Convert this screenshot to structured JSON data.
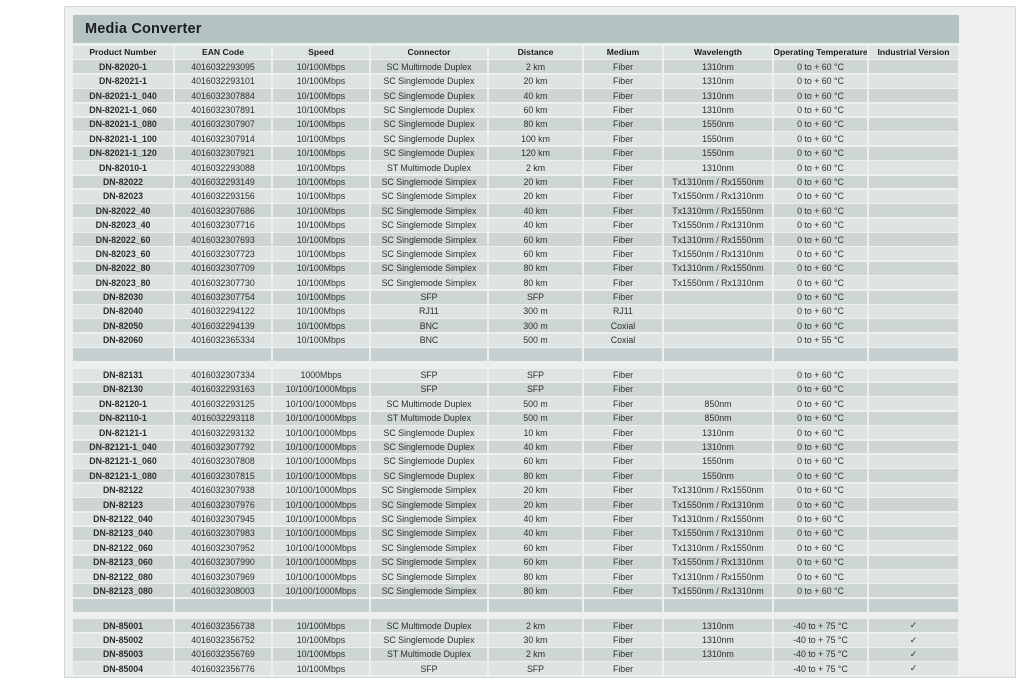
{
  "title": "Media Converter",
  "colors": {
    "panel": "#eef0f0",
    "title_band": "#b4c2c1",
    "header_cell": "#dce3e3",
    "row_dark": "#cdd5d5",
    "row_light": "#dee4e4",
    "separator": "#c7d0d0"
  },
  "columns": [
    "Product Number",
    "EAN Code",
    "Speed",
    "Connector",
    "Distance",
    "Medium",
    "Wavelength",
    "Operating Temperature",
    "Industrial Version"
  ],
  "check_mark": "✓",
  "sections": [
    [
      [
        "DN-82020-1",
        "4016032293095",
        "10/100Mbps",
        "SC Multimode Duplex",
        "2 km",
        "Fiber",
        "1310nm",
        "0 to + 60 °C",
        ""
      ],
      [
        "DN-82021-1",
        "4016032293101",
        "10/100Mbps",
        "SC Singlemode Duplex",
        "20 km",
        "Fiber",
        "1310nm",
        "0 to + 60 °C",
        ""
      ],
      [
        "DN-82021-1_040",
        "4016032307884",
        "10/100Mbps",
        "SC Singlemode Duplex",
        "40 km",
        "Fiber",
        "1310nm",
        "0 to + 60 °C",
        ""
      ],
      [
        "DN-82021-1_060",
        "4016032307891",
        "10/100Mbps",
        "SC Singlemode Duplex",
        "60 km",
        "Fiber",
        "1310nm",
        "0 to + 60 °C",
        ""
      ],
      [
        "DN-82021-1_080",
        "4016032307907",
        "10/100Mbps",
        "SC Singlemode Duplex",
        "80 km",
        "Fiber",
        "1550nm",
        "0 to + 60 °C",
        ""
      ],
      [
        "DN-82021-1_100",
        "4016032307914",
        "10/100Mbps",
        "SC Singlemode Duplex",
        "100 km",
        "Fiber",
        "1550nm",
        "0 to + 60 °C",
        ""
      ],
      [
        "DN-82021-1_120",
        "4016032307921",
        "10/100Mbps",
        "SC Singlemode Duplex",
        "120 km",
        "Fiber",
        "1550nm",
        "0 to + 60 °C",
        ""
      ],
      [
        "DN-82010-1",
        "4016032293088",
        "10/100Mbps",
        "ST Multimode Duplex",
        "2 km",
        "Fiber",
        "1310nm",
        "0 to + 60 °C",
        ""
      ],
      [
        "DN-82022",
        "4016032293149",
        "10/100Mbps",
        "SC Singlemode Simplex",
        "20 km",
        "Fiber",
        "Tx1310nm / Rx1550nm",
        "0 to + 60 °C",
        ""
      ],
      [
        "DN-82023",
        "4016032293156",
        "10/100Mbps",
        "SC Singlemode Simplex",
        "20 km",
        "Fiber",
        "Tx1550nm / Rx1310nm",
        "0 to + 60 °C",
        ""
      ],
      [
        "DN-82022_40",
        "4016032307686",
        "10/100Mbps",
        "SC Singlemode Simplex",
        "40 km",
        "Fiber",
        "Tx1310nm / Rx1550nm",
        "0 to + 60 °C",
        ""
      ],
      [
        "DN-82023_40",
        "4016032307716",
        "10/100Mbps",
        "SC Singlemode Simplex",
        "40 km",
        "Fiber",
        "Tx1550nm / Rx1310nm",
        "0 to + 60 °C",
        ""
      ],
      [
        "DN-82022_60",
        "4016032307693",
        "10/100Mbps",
        "SC Singlemode Simplex",
        "60 km",
        "Fiber",
        "Tx1310nm / Rx1550nm",
        "0 to + 60 °C",
        ""
      ],
      [
        "DN-82023_60",
        "4016032307723",
        "10/100Mbps",
        "SC Singlemode Simplex",
        "60 km",
        "Fiber",
        "Tx1550nm / Rx1310nm",
        "0 to + 60 °C",
        ""
      ],
      [
        "DN-82022_80",
        "4016032307709",
        "10/100Mbps",
        "SC Singlemode Simplex",
        "80 km",
        "Fiber",
        "Tx1310nm / Rx1550nm",
        "0 to + 60 °C",
        ""
      ],
      [
        "DN-82023_80",
        "4016032307730",
        "10/100Mbps",
        "SC Singlemode Simplex",
        "80 km",
        "Fiber",
        "Tx1550nm / Rx1310nm",
        "0 to + 60 °C",
        ""
      ],
      [
        "DN-82030",
        "4016032307754",
        "10/100Mbps",
        "SFP",
        "SFP",
        "Fiber",
        "",
        "0 to + 60 °C",
        ""
      ],
      [
        "DN-82040",
        "4016032294122",
        "10/100Mbps",
        "RJ11",
        "300 m",
        "RJ11",
        "",
        "0 to + 60 °C",
        ""
      ],
      [
        "DN-82050",
        "4016032294139",
        "10/100Mbps",
        "BNC",
        "300 m",
        "Coxial",
        "",
        "0 to + 60 °C",
        ""
      ],
      [
        "DN-82060",
        "4016032365334",
        "10/100Mbps",
        "BNC",
        "500 m",
        "Coxial",
        "",
        "0 to + 55 °C",
        ""
      ]
    ],
    [
      [
        "DN-82131",
        "4016032307334",
        "1000Mbps",
        "SFP",
        "SFP",
        "Fiber",
        "",
        "0 to + 60 °C",
        ""
      ],
      [
        "DN-82130",
        "4016032293163",
        "10/100/1000Mbps",
        "SFP",
        "SFP",
        "Fiber",
        "",
        "0 to + 60 °C",
        ""
      ],
      [
        "DN-82120-1",
        "4016032293125",
        "10/100/1000Mbps",
        "SC Multimode Duplex",
        "500 m",
        "Fiber",
        "850nm",
        "0 to + 60 °C",
        ""
      ],
      [
        "DN-82110-1",
        "4016032293118",
        "10/100/1000Mbps",
        "ST Multimode Duplex",
        "500 m",
        "Fiber",
        "850nm",
        "0 to + 60 °C",
        ""
      ],
      [
        "DN-82121-1",
        "4016032293132",
        "10/100/1000Mbps",
        "SC Singlemode Duplex",
        "10 km",
        "Fiber",
        "1310nm",
        "0 to + 60 °C",
        ""
      ],
      [
        "DN-82121-1_040",
        "4016032307792",
        "10/100/1000Mbps",
        "SC Singlemode Duplex",
        "40 km",
        "Fiber",
        "1310nm",
        "0 to + 60 °C",
        ""
      ],
      [
        "DN-82121-1_060",
        "4016032307808",
        "10/100/1000Mbps",
        "SC Singlemode Duplex",
        "60 km",
        "Fiber",
        "1550nm",
        "0 to + 60 °C",
        ""
      ],
      [
        "DN-82121-1_080",
        "4016032307815",
        "10/100/1000Mbps",
        "SC Singlemode Duplex",
        "80 km",
        "Fiber",
        "1550nm",
        "0 to + 60 °C",
        ""
      ],
      [
        "DN-82122",
        "4016032307938",
        "10/100/1000Mbps",
        "SC Singlemode Simplex",
        "20 km",
        "Fiber",
        "Tx1310nm / Rx1550nm",
        "0 to + 60 °C",
        ""
      ],
      [
        "DN-82123",
        "4016032307976",
        "10/100/1000Mbps",
        "SC Singlemode Simplex",
        "20 km",
        "Fiber",
        "Tx1550nm / Rx1310nm",
        "0 to + 60 °C",
        ""
      ],
      [
        "DN-82122_040",
        "4016032307945",
        "10/100/1000Mbps",
        "SC Singlemode Simplex",
        "40 km",
        "Fiber",
        "Tx1310nm / Rx1550nm",
        "0 to + 60 °C",
        ""
      ],
      [
        "DN-82123_040",
        "4016032307983",
        "10/100/1000Mbps",
        "SC Singlemode Simplex",
        "40 km",
        "Fiber",
        "Tx1550nm / Rx1310nm",
        "0 to + 60 °C",
        ""
      ],
      [
        "DN-82122_060",
        "4016032307952",
        "10/100/1000Mbps",
        "SC Singlemode Simplex",
        "60 km",
        "Fiber",
        "Tx1310nm / Rx1550nm",
        "0 to + 60 °C",
        ""
      ],
      [
        "DN-82123_060",
        "4016032307990",
        "10/100/1000Mbps",
        "SC Singlemode Simplex",
        "60 km",
        "Fiber",
        "Tx1550nm / Rx1310nm",
        "0 to + 60 °C",
        ""
      ],
      [
        "DN-82122_080",
        "4016032307969",
        "10/100/1000Mbps",
        "SC Singlemode Simplex",
        "80 km",
        "Fiber",
        "Tx1310nm / Rx1550nm",
        "0 to + 60 °C",
        ""
      ],
      [
        "DN-82123_080",
        "4016032308003",
        "10/100/1000Mbps",
        "SC Singlemode Simplex",
        "80 km",
        "Fiber",
        "Tx1550nm / Rx1310nm",
        "0 to + 60 °C",
        ""
      ]
    ],
    [
      [
        "DN-85001",
        "4016032356738",
        "10/100Mbps",
        "SC Multimode Duplex",
        "2 km",
        "Fiber",
        "1310nm",
        "-40 to + 75 °C",
        "✓"
      ],
      [
        "DN-85002",
        "4016032356752",
        "10/100Mbps",
        "SC Singlemode Duplex",
        "30 km",
        "Fiber",
        "1310nm",
        "-40 to + 75 °C",
        "✓"
      ],
      [
        "DN-85003",
        "4016032356769",
        "10/100Mbps",
        "ST Multimode Duplex",
        "2 km",
        "Fiber",
        "1310nm",
        "-40 to + 75 °C",
        "✓"
      ],
      [
        "DN-85004",
        "4016032356776",
        "10/100Mbps",
        "SFP",
        "SFP",
        "Fiber",
        "",
        "-40 to + 75 °C",
        "✓"
      ]
    ]
  ]
}
